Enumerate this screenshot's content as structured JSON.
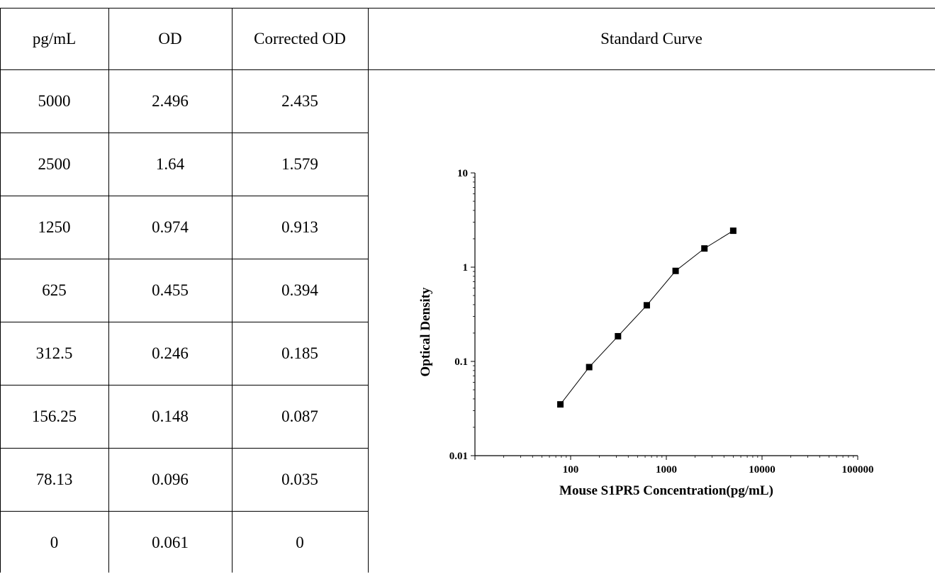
{
  "title": "",
  "table": {
    "headers": [
      "pg/mL",
      "OD",
      "Corrected OD"
    ],
    "rows": [
      [
        "5000",
        "2.496",
        "2.435"
      ],
      [
        "2500",
        "1.64",
        "1.579"
      ],
      [
        "1250",
        "0.974",
        "0.913"
      ],
      [
        "625",
        "0.455",
        "0.394"
      ],
      [
        "312.5",
        "0.246",
        "0.185"
      ],
      [
        "156.25",
        "0.148",
        "0.087"
      ],
      [
        "78.13",
        "0.096",
        "0.035"
      ],
      [
        "0",
        "0.061",
        "0"
      ]
    ]
  },
  "chart_header": "Standard Curve",
  "chart_data": {
    "type": "scatter",
    "title": "Standard Curve",
    "xlabel": "Mouse S1PR5 Concentration(pg/mL)",
    "ylabel": "Optical Density",
    "x_scale": "log",
    "y_scale": "log",
    "xlim": [
      10,
      100000
    ],
    "ylim": [
      0.01,
      10
    ],
    "x_ticks": [
      "100",
      "1000",
      "10000",
      "100000"
    ],
    "y_ticks": [
      "0.01",
      "0.1",
      "1",
      "10"
    ],
    "grid": false,
    "marker": "square",
    "connected_with_line": true,
    "series": [
      {
        "x": [
          78.13,
          156.25,
          312.5,
          625,
          1250,
          2500,
          5000
        ],
        "y": [
          0.035,
          0.087,
          0.185,
          0.394,
          0.913,
          1.579,
          2.435
        ]
      }
    ]
  }
}
